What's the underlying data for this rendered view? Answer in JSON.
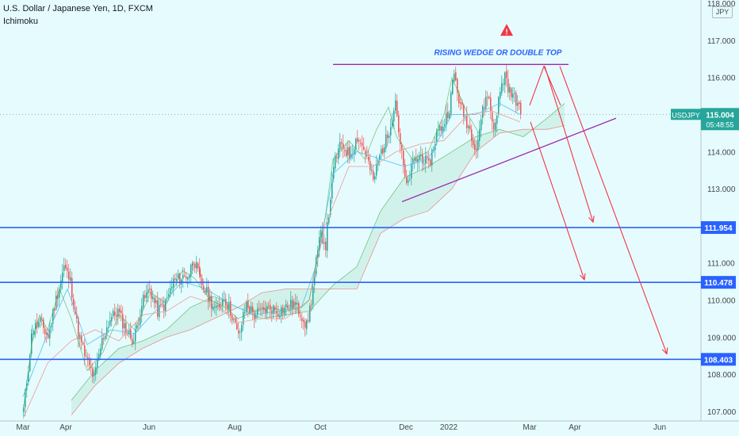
{
  "header": {
    "title": "U.S. Dollar / Japanese Yen, 1D, FXCM",
    "indicator": "Ichimoku",
    "currency": "JPY"
  },
  "colors": {
    "up": "#26a69a",
    "down": "#ef5350",
    "support_line": "#2962ff",
    "pattern": "#9c27b0",
    "projection": "#f23645",
    "warning": "#f23645",
    "annotation_text": "#2962ff",
    "badge_green": "#26a69a",
    "badge_blue": "#2962ff",
    "cloud_fill": "#a5e3c8",
    "lagging_span": "#4caf50",
    "base_line": "#ef9a9a",
    "conversion_line": "#4fc3f7"
  },
  "chart_data": {
    "type": "candlestick",
    "symbol": "USDJPY",
    "ylim": [
      106.85,
      118.0
    ],
    "y_ticks": [
      107.0,
      108.0,
      109.0,
      110.0,
      111.0,
      112.0,
      113.0,
      114.0,
      115.0,
      116.0,
      117.0,
      118.0
    ],
    "y_tick_labels": [
      "107.000",
      "108.000",
      "109.000",
      "110.000",
      "111.000",
      "112.000",
      "113.000",
      "114.000",
      "115.000",
      "116.000",
      "117.000",
      "118.000"
    ],
    "x_labels": [
      "Mar",
      "Apr",
      "Jun",
      "Aug",
      "Oct",
      "Dec",
      "2022",
      "Mar",
      "Apr",
      "Jun"
    ],
    "x_label_pos": [
      29,
      83,
      188,
      296,
      404,
      512,
      566,
      668,
      725,
      832
    ],
    "grid": false,
    "last_price": {
      "value": 115.004,
      "label": "115.004",
      "symbol": "USDJPY",
      "countdown": "05:48:55"
    },
    "horizontal_levels": [
      {
        "value": 111.954,
        "label": "111.954"
      },
      {
        "value": 110.478,
        "label": "110.478"
      },
      {
        "value": 108.403,
        "label": "108.403"
      }
    ],
    "annotation": {
      "text": "RISING WEDGE OR DOUBLE TOP",
      "value": 116.6
    },
    "warning_icon_value": 117.25,
    "pattern_lines": [
      {
        "name": "top resistance",
        "points": [
          [
            420,
            116.35
          ],
          [
            717,
            116.35
          ]
        ]
      },
      {
        "name": "rising support",
        "points": [
          [
            507,
            112.65
          ],
          [
            777,
            114.9
          ]
        ]
      }
    ],
    "projection_lines": [
      {
        "name": "peak-1",
        "points": [
          [
            668,
            115.25
          ],
          [
            686,
            116.3
          ],
          [
            707,
            115.25
          ]
        ]
      },
      {
        "name": "drop-1",
        "points": [
          [
            669,
            114.8
          ],
          [
            737,
            110.55
          ]
        ]
      },
      {
        "name": "drop-2",
        "points": [
          [
            687,
            116.3
          ],
          [
            748,
            112.1
          ]
        ]
      },
      {
        "name": "drop-3",
        "points": [
          [
            706,
            116.3
          ],
          [
            841,
            108.55
          ]
        ]
      }
    ],
    "anchors": [
      [
        29,
        107.05
      ],
      [
        40,
        109.2
      ],
      [
        50,
        109.4
      ],
      [
        60,
        109.0
      ],
      [
        68,
        109.85
      ],
      [
        80,
        110.9
      ],
      [
        88,
        110.5
      ],
      [
        98,
        109.1
      ],
      [
        108,
        108.4
      ],
      [
        118,
        107.9
      ],
      [
        128,
        108.9
      ],
      [
        138,
        109.5
      ],
      [
        148,
        109.7
      ],
      [
        158,
        109.2
      ],
      [
        168,
        108.9
      ],
      [
        178,
        109.9
      ],
      [
        188,
        110.3
      ],
      [
        198,
        109.7
      ],
      [
        208,
        109.9
      ],
      [
        218,
        110.5
      ],
      [
        228,
        110.6
      ],
      [
        238,
        110.7
      ],
      [
        243,
        111.15
      ],
      [
        252,
        110.5
      ],
      [
        262,
        110.1
      ],
      [
        272,
        109.7
      ],
      [
        282,
        110.1
      ],
      [
        292,
        109.6
      ],
      [
        300,
        109.0
      ],
      [
        310,
        109.9
      ],
      [
        320,
        109.6
      ],
      [
        330,
        109.7
      ],
      [
        340,
        109.8
      ],
      [
        350,
        109.7
      ],
      [
        360,
        109.8
      ],
      [
        370,
        109.9
      ],
      [
        380,
        109.6
      ],
      [
        386,
        109.3
      ],
      [
        392,
        110.0
      ],
      [
        398,
        111.0
      ],
      [
        404,
        111.8
      ],
      [
        410,
        111.5
      ],
      [
        416,
        112.8
      ],
      [
        422,
        113.8
      ],
      [
        430,
        114.2
      ],
      [
        440,
        113.9
      ],
      [
        450,
        114.4
      ],
      [
        460,
        114.0
      ],
      [
        470,
        113.2
      ],
      [
        478,
        113.9
      ],
      [
        488,
        114.4
      ],
      [
        498,
        115.4
      ],
      [
        504,
        114.2
      ],
      [
        512,
        113.0
      ],
      [
        520,
        113.7
      ],
      [
        530,
        113.9
      ],
      [
        540,
        113.6
      ],
      [
        550,
        114.5
      ],
      [
        558,
        114.7
      ],
      [
        566,
        115.2
      ],
      [
        572,
        116.1
      ],
      [
        580,
        115.2
      ],
      [
        590,
        114.7
      ],
      [
        600,
        114.1
      ],
      [
        606,
        114.9
      ],
      [
        614,
        115.6
      ],
      [
        622,
        114.6
      ],
      [
        630,
        115.6
      ],
      [
        636,
        116.1
      ],
      [
        642,
        115.6
      ],
      [
        650,
        115.4
      ],
      [
        656,
        115.0
      ]
    ],
    "ichimoku": {
      "conversion": [
        [
          29,
          107.4
        ],
        [
          60,
          109.1
        ],
        [
          85,
          110.3
        ],
        [
          110,
          108.8
        ],
        [
          140,
          109.2
        ],
        [
          170,
          109.1
        ],
        [
          200,
          109.8
        ],
        [
          230,
          110.5
        ],
        [
          260,
          110.3
        ],
        [
          290,
          109.9
        ],
        [
          320,
          109.6
        ],
        [
          350,
          109.7
        ],
        [
          380,
          109.8
        ],
        [
          400,
          111.0
        ],
        [
          420,
          113.4
        ],
        [
          450,
          114.0
        ],
        [
          480,
          113.8
        ],
        [
          510,
          113.6
        ],
        [
          540,
          113.8
        ],
        [
          570,
          115.0
        ],
        [
          600,
          115.0
        ],
        [
          630,
          115.3
        ],
        [
          656,
          115.0
        ]
      ],
      "base": [
        [
          29,
          106.8
        ],
        [
          60,
          108.3
        ],
        [
          90,
          108.9
        ],
        [
          120,
          109.2
        ],
        [
          150,
          108.9
        ],
        [
          180,
          109.6
        ],
        [
          210,
          109.7
        ],
        [
          240,
          110.1
        ],
        [
          270,
          109.9
        ],
        [
          300,
          109.4
        ],
        [
          330,
          109.5
        ],
        [
          360,
          109.5
        ],
        [
          390,
          110.0
        ],
        [
          410,
          112.0
        ],
        [
          440,
          113.6
        ],
        [
          470,
          113.6
        ],
        [
          500,
          114.0
        ],
        [
          530,
          114.2
        ],
        [
          560,
          114.3
        ],
        [
          590,
          115.0
        ],
        [
          620,
          115.1
        ],
        [
          656,
          114.8
        ]
      ],
      "span_a": [
        [
          90,
          107.3
        ],
        [
          120,
          108.1
        ],
        [
          150,
          108.7
        ],
        [
          180,
          108.9
        ],
        [
          210,
          109.2
        ],
        [
          240,
          109.8
        ],
        [
          270,
          110.1
        ],
        [
          300,
          109.8
        ],
        [
          330,
          109.5
        ],
        [
          360,
          109.6
        ],
        [
          390,
          109.7
        ],
        [
          420,
          110.4
        ],
        [
          450,
          110.9
        ],
        [
          480,
          112.4
        ],
        [
          510,
          113.3
        ],
        [
          540,
          113.6
        ],
        [
          570,
          114.0
        ],
        [
          600,
          114.4
        ],
        [
          630,
          114.6
        ],
        [
          660,
          114.4
        ],
        [
          690,
          114.9
        ],
        [
          712,
          115.3
        ]
      ],
      "span_b": [
        [
          90,
          106.9
        ],
        [
          120,
          107.7
        ],
        [
          150,
          108.3
        ],
        [
          180,
          108.7
        ],
        [
          210,
          109.0
        ],
        [
          240,
          109.2
        ],
        [
          270,
          109.5
        ],
        [
          300,
          109.8
        ],
        [
          330,
          110.2
        ],
        [
          360,
          110.3
        ],
        [
          390,
          110.3
        ],
        [
          420,
          110.3
        ],
        [
          450,
          110.3
        ],
        [
          480,
          111.8
        ],
        [
          510,
          112.2
        ],
        [
          540,
          112.4
        ],
        [
          570,
          113.0
        ],
        [
          600,
          114.0
        ],
        [
          630,
          114.5
        ],
        [
          660,
          114.6
        ],
        [
          690,
          114.6
        ],
        [
          712,
          114.7
        ]
      ],
      "lagging": [
        [
          29,
          107.0
        ],
        [
          40,
          108.8
        ],
        [
          50,
          109.6
        ],
        [
          60,
          109.2
        ],
        [
          75,
          110.3
        ],
        [
          90,
          109.5
        ],
        [
          110,
          108.1
        ],
        [
          130,
          108.6
        ],
        [
          150,
          109.6
        ],
        [
          170,
          109.2
        ],
        [
          190,
          110.2
        ],
        [
          210,
          109.9
        ],
        [
          230,
          110.8
        ],
        [
          245,
          110.6
        ],
        [
          265,
          110.0
        ],
        [
          285,
          109.8
        ],
        [
          300,
          109.5
        ],
        [
          320,
          109.7
        ],
        [
          340,
          109.8
        ],
        [
          360,
          109.7
        ],
        [
          380,
          109.8
        ],
        [
          390,
          110.0
        ],
        [
          400,
          111.2
        ],
        [
          410,
          112.2
        ],
        [
          420,
          113.8
        ],
        [
          440,
          114.3
        ],
        [
          460,
          113.8
        ],
        [
          475,
          114.6
        ],
        [
          490,
          115.2
        ],
        [
          500,
          114.4
        ],
        [
          520,
          113.8
        ],
        [
          540,
          114.0
        ],
        [
          560,
          115.0
        ],
        [
          570,
          116.0
        ],
        [
          590,
          115.0
        ],
        [
          604,
          114.5
        ]
      ]
    }
  }
}
